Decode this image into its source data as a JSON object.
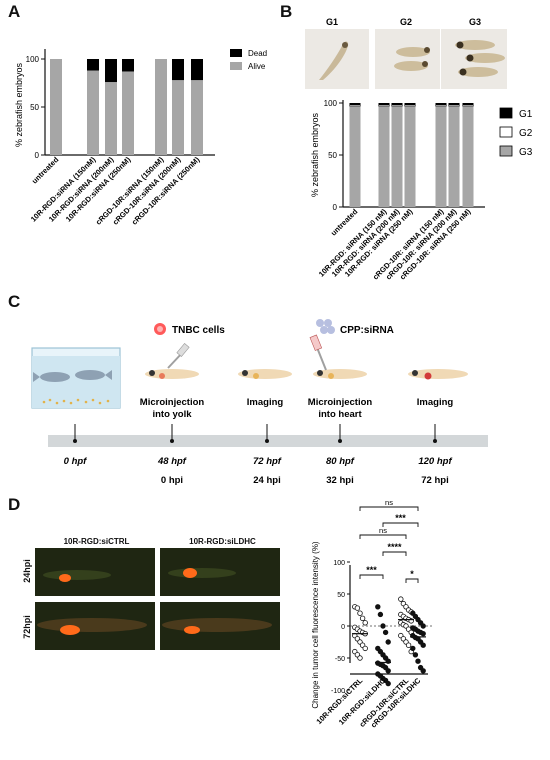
{
  "panels": {
    "a": "A",
    "b": "B",
    "c": "C",
    "d": "D"
  },
  "panel_a": {
    "ylabel": "% zebrafish embryos",
    "yticks": [
      "0",
      "50",
      "100"
    ],
    "legend": [
      {
        "name": "Dead",
        "color": "#000000"
      },
      {
        "name": "Alive",
        "color": "#a6a6a6"
      }
    ],
    "categories": [
      "untreated",
      "10R-RGD:siRNA (150nM)",
      "10R-RGD:siRNA (200nM)",
      "10R-RGD:siRNA (250nM)",
      "cRGD-10R:siRNA (150nM)",
      "cRGD-10R:siRNA (200nM)",
      "cRGD-10R:siRNA (250nM)"
    ]
  },
  "panel_b": {
    "image_labels": [
      "G1",
      "G2",
      "G3"
    ],
    "ylabel": "% zebrafish embryos",
    "yticks": [
      "0",
      "50",
      "100"
    ],
    "legend": [
      {
        "name": "G1",
        "color": "#000000"
      },
      {
        "name": "G2",
        "color": "#ffffff"
      },
      {
        "name": "G3",
        "color": "#a6a6a6"
      }
    ],
    "categories": [
      "untreated",
      "10R-RGD: siRNA (150 nM)",
      "10R-RGD: siRNA (200 nM)",
      "10R-RGD: siRNA (250 nM)",
      "cRGD-10R: siRNA (150 nM)",
      "cRGD-10R: siRNA (200 nM)",
      "cRGD-10R: siRNA (250 nM)"
    ]
  },
  "panel_c": {
    "tnbc_label": "TNBC cells",
    "cpp_label": "CPP:siRNA",
    "steps": [
      {
        "name": "Microinjection into yolk",
        "lines": [
          "Microinjection",
          "into yolk"
        ]
      },
      {
        "name": "Imaging",
        "lines": [
          "Imaging"
        ]
      },
      {
        "name": "Microinjection into heart",
        "lines": [
          "Microinjection",
          "into heart"
        ]
      },
      {
        "name": "Imaging",
        "lines": [
          "Imaging"
        ]
      }
    ],
    "hpf": [
      "0 hpf",
      "48 hpf",
      "72 hpf",
      "80 hpf",
      "120 hpf"
    ],
    "hpi": [
      "0 hpi",
      "24 hpi",
      "32 hpi",
      "72 hpi"
    ]
  },
  "panel_d": {
    "image_col_labels": [
      "10R-RGD:siCTRL",
      "10R-RGD:siLDHC"
    ],
    "image_row_labels": [
      "24hpi",
      "72hpi"
    ],
    "ylabel": "Change in tumor cell fluorescence intensity (%)",
    "yticks": [
      "100",
      "50",
      "0",
      "-50",
      "-100"
    ],
    "categories": [
      "10R-RGD:siCTRL",
      "10R-RGD:siLDHC",
      "cRGD-10R:siCTRL",
      "cRGD-10R:siLDHC"
    ],
    "significance": [
      "ns",
      "***",
      "ns",
      "****",
      "***",
      "*"
    ]
  },
  "chart_data": [
    {
      "type": "bar",
      "title": "",
      "ylabel": "% zebrafish embryos",
      "ylim": [
        0,
        100
      ],
      "categories": [
        "untreated",
        "10R-RGD:siRNA (150nM)",
        "10R-RGD:siRNA (200nM)",
        "10R-RGD:siRNA (250nM)",
        "cRGD-10R:siRNA (150nM)",
        "cRGD-10R:siRNA (200nM)",
        "cRGD-10R:siRNA (250nM)"
      ],
      "stacked": true,
      "series": [
        {
          "name": "Alive",
          "color": "#a6a6a6",
          "values": [
            100,
            88,
            76,
            87,
            100,
            78,
            78
          ]
        },
        {
          "name": "Dead",
          "color": "#000000",
          "values": [
            0,
            12,
            24,
            13,
            0,
            22,
            22
          ]
        }
      ],
      "legend": "top-right"
    },
    {
      "type": "bar",
      "title": "",
      "ylabel": "% zebrafish embryos",
      "ylim": [
        0,
        100
      ],
      "categories": [
        "untreated",
        "10R-RGD: siRNA (150 nM)",
        "10R-RGD: siRNA (200 nM)",
        "10R-RGD: siRNA (250 nM)",
        "cRGD-10R: siRNA (150 nM)",
        "cRGD-10R: siRNA (200 nM)",
        "cRGD-10R: siRNA (250 nM)"
      ],
      "stacked": true,
      "series": [
        {
          "name": "G3",
          "color": "#a6a6a6",
          "values": [
            97,
            97,
            97,
            97,
            97,
            97,
            97
          ]
        },
        {
          "name": "G2",
          "color": "#ffffff",
          "values": [
            1,
            1,
            1,
            1,
            1,
            1,
            1
          ]
        },
        {
          "name": "G1",
          "color": "#000000",
          "values": [
            2,
            2,
            2,
            2,
            2,
            2,
            2
          ]
        }
      ],
      "legend": "right"
    },
    {
      "type": "scatter",
      "title": "",
      "ylabel": "Change in tumor cell fluorescence intensity (%)",
      "ylim": [
        -100,
        100
      ],
      "categories": [
        "10R-RGD:siCTRL",
        "10R-RGD:siLDHC",
        "cRGD-10R:siCTRL",
        "cRGD-10R:siLDHC"
      ],
      "reference_line": 0,
      "series": [
        {
          "category": "10R-RGD:siCTRL",
          "marker": "open",
          "mean": -12,
          "values": [
            30,
            28,
            20,
            12,
            5,
            -2,
            -5,
            -8,
            -10,
            -12,
            -15,
            -20,
            -25,
            -30,
            -35,
            -40,
            -45,
            -50
          ]
        },
        {
          "category": "10R-RGD:siLDHC",
          "marker": "filled",
          "mean": -57,
          "values": [
            30,
            18,
            0,
            -10,
            -25,
            -35,
            -40,
            -45,
            -50,
            -55,
            -58,
            -60,
            -62,
            -65,
            -70,
            -75,
            -78,
            -82,
            -85,
            -90
          ]
        },
        {
          "category": "cRGD-10R:siCTRL",
          "marker": "open",
          "mean": 10,
          "values": [
            42,
            35,
            30,
            25,
            22,
            18,
            15,
            12,
            10,
            8,
            5,
            2,
            0,
            -5,
            -10,
            -15,
            -20,
            -25,
            -30,
            -40
          ]
        },
        {
          "category": "cRGD-10R:siLDHC",
          "marker": "filled",
          "mean": -17,
          "values": [
            20,
            15,
            10,
            5,
            0,
            -3,
            -5,
            -8,
            -10,
            -12,
            -15,
            -18,
            -20,
            -25,
            -30,
            -35,
            -45,
            -55,
            -65,
            -70
          ]
        }
      ],
      "significance": [
        {
          "pair": [
            "10R-RGD:siCTRL",
            "cRGD-10R:siLDHC"
          ],
          "label": "ns"
        },
        {
          "pair": [
            "10R-RGD:siLDHC",
            "cRGD-10R:siLDHC"
          ],
          "label": "***"
        },
        {
          "pair": [
            "10R-RGD:siCTRL",
            "cRGD-10R:siCTRL"
          ],
          "label": "ns"
        },
        {
          "pair": [
            "10R-RGD:siLDHC",
            "cRGD-10R:siCTRL"
          ],
          "label": "****"
        },
        {
          "pair": [
            "10R-RGD:siCTRL",
            "10R-RGD:siLDHC"
          ],
          "label": "***"
        },
        {
          "pair": [
            "cRGD-10R:siCTRL",
            "cRGD-10R:siLDHC"
          ],
          "label": "*"
        }
      ]
    }
  ]
}
